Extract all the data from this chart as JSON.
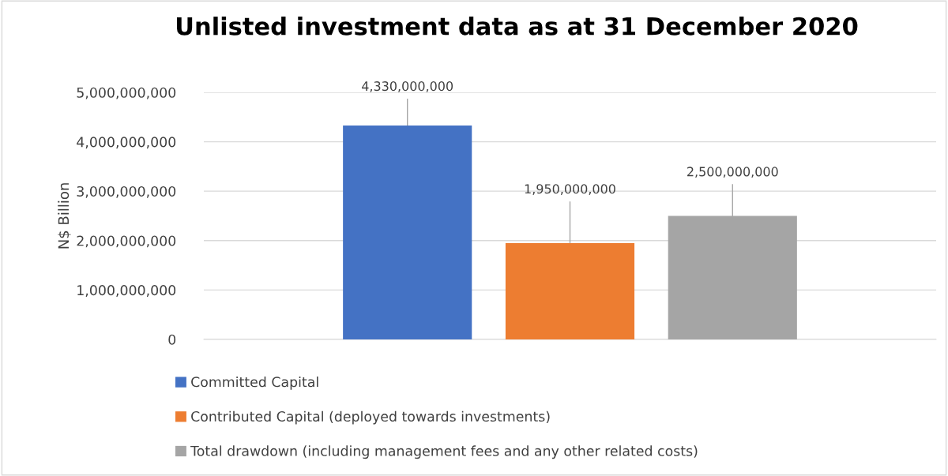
{
  "chart_data": {
    "type": "bar",
    "title": "Unlisted investment data as at 31 December 2020",
    "ylabel": "N$ Billion",
    "categories": [
      null
    ],
    "series": [
      {
        "name": "Committed Capital",
        "color": "#4472c4",
        "values": [
          4330000000
        ],
        "value_labels": [
          "4,330,000,000"
        ]
      },
      {
        "name": "Contributed Capital (deployed towards investments)",
        "color": "#ed7d31",
        "values": [
          1950000000
        ],
        "value_labels": [
          "1,950,000,000"
        ]
      },
      {
        "name": "Total drawdown (including management fees and any other related costs)",
        "color": "#a5a5a5",
        "values": [
          2500000000
        ],
        "value_labels": [
          "2,500,000,000"
        ]
      }
    ],
    "ylim": [
      0,
      5000000000
    ],
    "yticks": [
      {
        "value": 0,
        "label": "0"
      },
      {
        "value": 1000000000,
        "label": "1,000,000,000"
      },
      {
        "value": 2000000000,
        "label": "2,000,000,000"
      },
      {
        "value": 3000000000,
        "label": "3,000,000,000"
      },
      {
        "value": 4000000000,
        "label": "4,000,000,000"
      },
      {
        "value": 5000000000,
        "label": "5,000,000,000"
      }
    ],
    "grid": "y",
    "legend": "bottom"
  }
}
